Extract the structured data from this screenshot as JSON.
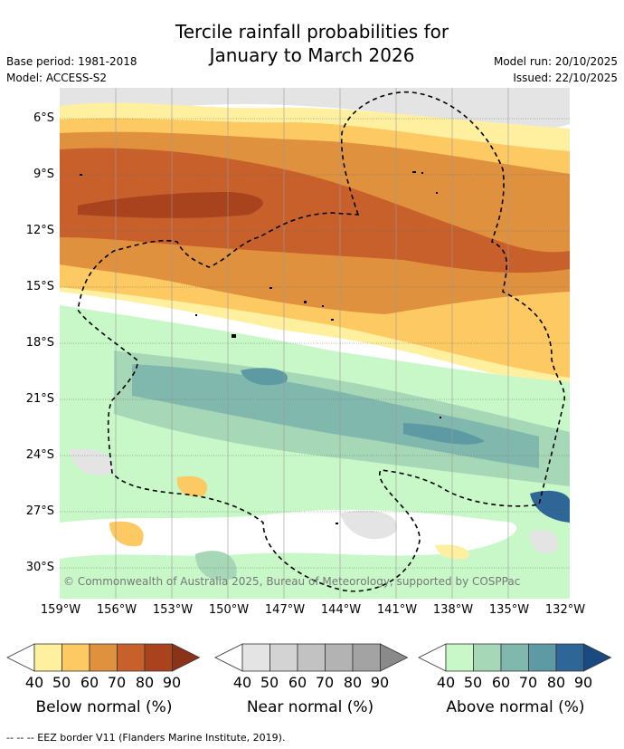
{
  "header": {
    "title_line1": "Tercile rainfall probabilities for",
    "title_line2": "January to March 2026",
    "base_period": "Base period: 1981-2018",
    "model": "Model: ACCESS-S2",
    "model_run": "Model run: 20/10/2025",
    "issued": "Issued: 22/10/2025"
  },
  "map": {
    "lat_labels": [
      "6°S",
      "9°S",
      "12°S",
      "15°S",
      "18°S",
      "21°S",
      "24°S",
      "27°S",
      "30°S"
    ],
    "lon_labels": [
      "159°W",
      "156°W",
      "153°W",
      "150°W",
      "147°W",
      "144°W",
      "141°W",
      "138°W",
      "135°W",
      "132°W"
    ],
    "copyright": "© Commonwealth of Australia 2025, Bureau of Meteorology, supported by COSPPac"
  },
  "legend": {
    "below": {
      "label": "Below normal (%)",
      "ticks": [
        "40",
        "50",
        "60",
        "70",
        "80",
        "90"
      ],
      "colors": [
        "#fff0a0",
        "#fdc962",
        "#e0913e",
        "#c8602c",
        "#a8431e",
        "#8c3218"
      ]
    },
    "near": {
      "label": "Near normal (%)",
      "ticks": [
        "40",
        "50",
        "60",
        "70",
        "80",
        "90"
      ],
      "colors": [
        "#e4e4e4",
        "#d3d3d3",
        "#c2c2c2",
        "#b3b3b3",
        "#a3a3a3",
        "#8a8a8a"
      ]
    },
    "above": {
      "label": "Above normal (%)",
      "ticks": [
        "40",
        "50",
        "60",
        "70",
        "80",
        "90"
      ],
      "colors": [
        "#c8f8c8",
        "#a6d8b8",
        "#80b8ae",
        "#5e9aa4",
        "#2f6698",
        "#1a4a80"
      ]
    }
  },
  "footer": {
    "eez_note": "--  --  -- EEZ border V11 (Flanders Marine Institute, 2019)."
  }
}
